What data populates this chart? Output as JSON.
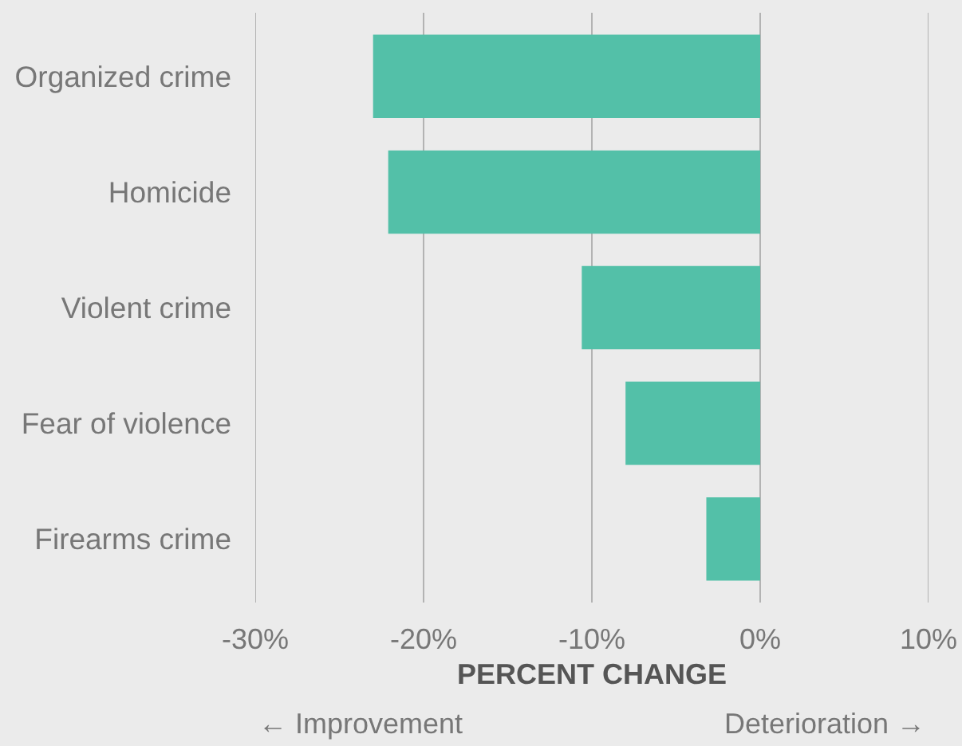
{
  "chart_data": {
    "type": "bar",
    "orientation": "horizontal",
    "xlabel": "PERCENT CHANGE",
    "categories": [
      "Organized crime",
      "Homicide",
      "Violent crime",
      "Fear of violence",
      "Firearms crime"
    ],
    "values": [
      -23.0,
      -22.1,
      -10.6,
      -8.0,
      -3.2
    ],
    "color": "#53c0a8",
    "xlim": [
      -30,
      10
    ],
    "xticks": [
      {
        "value": -30,
        "label": "-30%"
      },
      {
        "value": -20,
        "label": "-20%"
      },
      {
        "value": -10,
        "label": "-10%"
      },
      {
        "value": 0,
        "label": "0%"
      },
      {
        "value": 10,
        "label": "10%"
      }
    ],
    "grid": "x",
    "annotations": [
      "← Improvement",
      "Deterioration →"
    ]
  }
}
